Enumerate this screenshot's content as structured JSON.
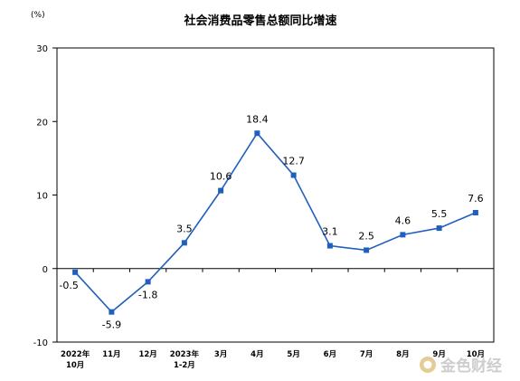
{
  "chart_data": {
    "type": "line",
    "title": "社会消费品零售总额同比增速",
    "unit": "(%)",
    "categories": [
      [
        "2022年",
        "10月"
      ],
      [
        "11月"
      ],
      [
        "12月"
      ],
      [
        "2023年",
        "1-2月"
      ],
      [
        "3月"
      ],
      [
        "4月"
      ],
      [
        "5月"
      ],
      [
        "6月"
      ],
      [
        "7月"
      ],
      [
        "8月"
      ],
      [
        "9月"
      ],
      [
        "10月"
      ]
    ],
    "series": [
      {
        "values": [
          -0.5,
          -5.9,
          -1.8,
          3.5,
          10.6,
          18.4,
          12.7,
          3.1,
          2.5,
          4.6,
          5.5,
          7.6
        ],
        "labels": [
          "-0.5",
          "-5.9",
          "-1.8",
          "3.5",
          "10.6",
          "18.4",
          "12.7",
          "3.1",
          "2.5",
          "4.6",
          "5.5",
          "7.6"
        ]
      }
    ],
    "yticks": [
      "30",
      "20",
      "10",
      "0",
      "-10"
    ],
    "ylim": [
      -10,
      30
    ],
    "grid": false,
    "line_color": "#1f5fbf"
  },
  "watermark": {
    "text": "金色财经",
    "icon": "gold-coin-logo-icon"
  }
}
